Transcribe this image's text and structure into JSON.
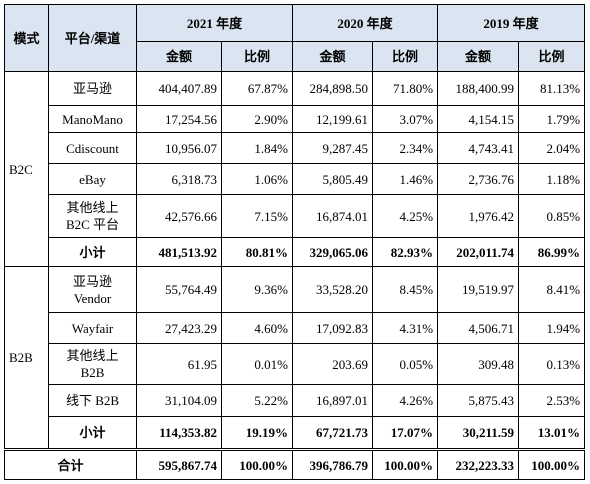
{
  "header": {
    "mode": "模式",
    "platform": "平台/渠道",
    "years": [
      "2021 年度",
      "2020 年度",
      "2019 年度"
    ],
    "amount": "金额",
    "ratio": "比例"
  },
  "groups": [
    {
      "mode": "B2C",
      "rows": [
        {
          "platform": "亚马逊",
          "values": [
            "404,407.89",
            "67.87%",
            "284,898.50",
            "71.80%",
            "188,400.99",
            "81.13%"
          ]
        },
        {
          "platform": "ManoMano",
          "values": [
            "17,254.56",
            "2.90%",
            "12,199.61",
            "3.07%",
            "4,154.15",
            "1.79%"
          ]
        },
        {
          "platform": "Cdiscount",
          "values": [
            "10,956.07",
            "1.84%",
            "9,287.45",
            "2.34%",
            "4,743.41",
            "2.04%"
          ]
        },
        {
          "platform": "eBay",
          "values": [
            "6,318.73",
            "1.06%",
            "5,805.49",
            "1.46%",
            "2,736.76",
            "1.18%"
          ]
        },
        {
          "platform": "其他线上\nB2C 平台",
          "values": [
            "42,576.66",
            "7.15%",
            "16,874.01",
            "4.25%",
            "1,976.42",
            "0.85%"
          ]
        }
      ],
      "subtotal": {
        "label": "小计",
        "values": [
          "481,513.92",
          "80.81%",
          "329,065.06",
          "82.93%",
          "202,011.74",
          "86.99%"
        ]
      }
    },
    {
      "mode": "B2B",
      "rows": [
        {
          "platform": "亚马逊\nVendor",
          "values": [
            "55,764.49",
            "9.36%",
            "33,528.20",
            "8.45%",
            "19,519.97",
            "8.41%"
          ]
        },
        {
          "platform": "Wayfair",
          "values": [
            "27,423.29",
            "4.60%",
            "17,092.83",
            "4.31%",
            "4,506.71",
            "1.94%"
          ]
        },
        {
          "platform": "其他线上\nB2B",
          "values": [
            "61.95",
            "0.01%",
            "203.69",
            "0.05%",
            "309.48",
            "0.13%"
          ]
        },
        {
          "platform": "线下 B2B",
          "values": [
            "31,104.09",
            "5.22%",
            "16,897.01",
            "4.26%",
            "5,875.43",
            "2.53%"
          ]
        }
      ],
      "subtotal": {
        "label": "小计",
        "values": [
          "114,353.82",
          "19.19%",
          "67,721.73",
          "17.07%",
          "30,211.59",
          "13.01%"
        ]
      }
    }
  ],
  "total": {
    "label": "合计",
    "values": [
      "595,867.74",
      "100.00%",
      "396,786.79",
      "100.00%",
      "232,223.33",
      "100.00%"
    ]
  }
}
